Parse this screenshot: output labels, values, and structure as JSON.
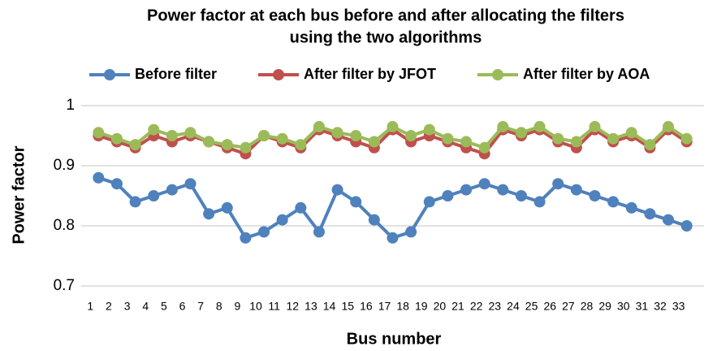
{
  "chart_data": {
    "type": "line",
    "title": [
      "Power factor at each bus before and after allocating the filters",
      "using the two algorithms"
    ],
    "x_label": "Bus number",
    "y_label": "Power factor",
    "categories": [
      1,
      2,
      3,
      4,
      5,
      6,
      7,
      8,
      9,
      10,
      11,
      12,
      13,
      14,
      15,
      16,
      17,
      18,
      19,
      20,
      21,
      22,
      23,
      24,
      25,
      26,
      27,
      28,
      29,
      30,
      31,
      32,
      33
    ],
    "series": [
      {
        "name": "Before filter",
        "color": "#4f81bd",
        "values": [
          0.88,
          0.87,
          0.84,
          0.85,
          0.86,
          0.87,
          0.82,
          0.83,
          0.78,
          0.79,
          0.81,
          0.83,
          0.79,
          0.86,
          0.84,
          0.81,
          0.78,
          0.79,
          0.84,
          0.85,
          0.86,
          0.87,
          0.86,
          0.85,
          0.84,
          0.87,
          0.86,
          0.85,
          0.84,
          0.83,
          0.82,
          0.81,
          0.8
        ]
      },
      {
        "name": "After filter by JFOT",
        "color": "#c0504d",
        "values": [
          0.95,
          0.94,
          0.93,
          0.95,
          0.94,
          0.95,
          0.94,
          0.93,
          0.92,
          0.95,
          0.94,
          0.93,
          0.96,
          0.95,
          0.94,
          0.93,
          0.96,
          0.94,
          0.95,
          0.94,
          0.93,
          0.92,
          0.96,
          0.95,
          0.96,
          0.94,
          0.93,
          0.96,
          0.94,
          0.95,
          0.93,
          0.96,
          0.94
        ]
      },
      {
        "name": "After filter by AOA",
        "color": "#9bbb59",
        "values": [
          0.955,
          0.945,
          0.935,
          0.96,
          0.95,
          0.955,
          0.94,
          0.935,
          0.93,
          0.95,
          0.945,
          0.935,
          0.965,
          0.955,
          0.95,
          0.94,
          0.965,
          0.95,
          0.96,
          0.945,
          0.94,
          0.93,
          0.965,
          0.955,
          0.965,
          0.945,
          0.94,
          0.965,
          0.945,
          0.955,
          0.935,
          0.965,
          0.945
        ]
      }
    ],
    "ylim": [
      0.7,
      1
    ],
    "yticks": [
      0.7,
      0.8,
      0.9,
      1
    ],
    "grid": true,
    "legend": "top"
  }
}
